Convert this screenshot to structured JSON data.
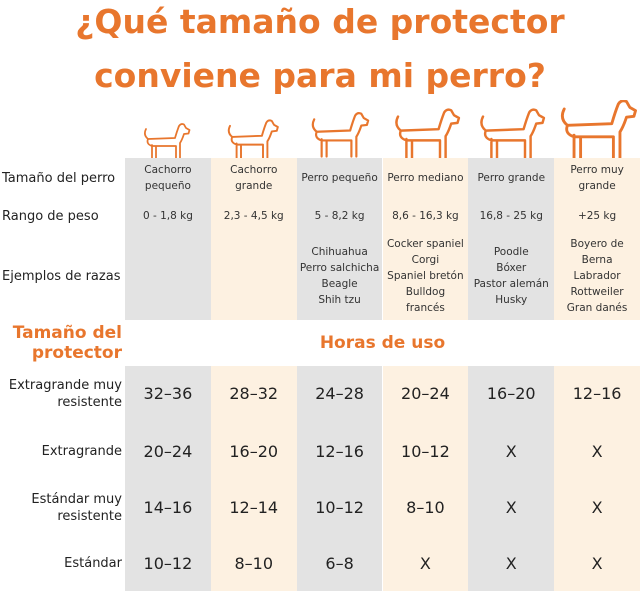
{
  "title": [
    "¿Qué tamaño de protector",
    "conviene para mi perro?"
  ],
  "dog_table": {
    "row_labels": [
      "Tamaño del perro",
      "Rango de peso",
      "Ejemplos de razas"
    ],
    "columns": [
      {
        "size": "Cachorro pequeño",
        "weight": "0 - 1,8 kg",
        "breeds": []
      },
      {
        "size": "Cachorro grande",
        "weight": "2,3 - 4,5 kg",
        "breeds": []
      },
      {
        "size": "Perro pequeño",
        "weight": "5 - 8,2 kg",
        "breeds": [
          "Chihuahua",
          "Perro salchicha",
          "Beagle",
          "Shih tzu"
        ]
      },
      {
        "size": "Perro mediano",
        "weight": "8,6 - 16,3 kg",
        "breeds": [
          "Cocker spaniel",
          "Corgi",
          "Spaniel bretón",
          "Bulldog francés"
        ]
      },
      {
        "size": "Perro grande",
        "weight": "16,8 - 25 kg",
        "breeds": [
          "Poodle",
          "Bóxer",
          "Pastor alemán",
          "Husky"
        ]
      },
      {
        "size": "Perro muy grande",
        "weight": "+25 kg",
        "breeds": [
          "Boyero de Berna",
          "Labrador",
          "Rottweiler",
          "Gran danés"
        ]
      }
    ]
  },
  "protector_header": "Tamaño del protector",
  "hours_header": "Horas de uso",
  "protector_rows": [
    {
      "label": "Extragrande muy resistente",
      "hours": [
        "32–36",
        "28–32",
        "24–28",
        "20–24",
        "16–20",
        "12–16"
      ]
    },
    {
      "label": "Extragrande",
      "hours": [
        "20–24",
        "16–20",
        "12–16",
        "10–12",
        "X",
        "X"
      ]
    },
    {
      "label": "Estándar muy resistente",
      "hours": [
        "14–16",
        "12–14",
        "10–12",
        "8–10",
        "X",
        "X"
      ]
    },
    {
      "label": "Estándar",
      "hours": [
        "10–12",
        "8–10",
        "6–8",
        "X",
        "X",
        "X"
      ]
    }
  ]
}
